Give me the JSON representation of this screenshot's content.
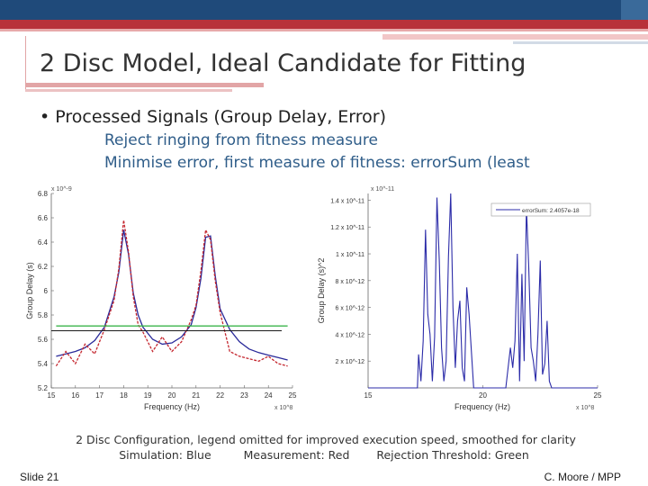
{
  "slide": {
    "title": "2 Disc Model, Ideal Candidate for Fitting",
    "bullet": "• Processed Signals (Group Delay, Error)",
    "subpoints": [
      "Reject ringing from fitness measure",
      "Minimise error, first measure of fitness: errorSum (least"
    ],
    "caption_line1": "2 Disc Configuration, legend omitted for improved execution speed, smoothed for clarity",
    "caption_line2": {
      "simulation": "Simulation: Blue",
      "measurement": "Measurement: Red",
      "threshold": "Rejection Threshold: Green"
    },
    "slide_number": "Slide 21",
    "author": "C. Moore / MPP"
  },
  "colors": {
    "simulation": "#2a2a9a",
    "measurement": "#c4262e",
    "threshold": "#3cb44b",
    "error": "#2b2ba8"
  },
  "chart_data": [
    {
      "type": "line",
      "xlabel": "Frequency (Hz)",
      "ylabel": "Group Delay (s)",
      "x_exponent": "x 10^8",
      "y_exponent": "x 10^-9",
      "xlim": [
        15,
        25
      ],
      "ylim": [
        5.2,
        6.8
      ],
      "xticks": [
        "15",
        "16",
        "17",
        "18",
        "19",
        "20",
        "21",
        "22",
        "23",
        "24",
        "25"
      ],
      "yticks": [
        "5.2",
        "5.4",
        "5.6",
        "5.8",
        "6",
        "6.2",
        "6.4",
        "6.6",
        "6.8"
      ],
      "x": [
        15.2,
        15.6,
        16,
        16.4,
        16.8,
        17.2,
        17.6,
        17.8,
        18,
        18.2,
        18.4,
        18.6,
        18.8,
        19.2,
        19.6,
        20,
        20.4,
        20.8,
        21,
        21.2,
        21.4,
        21.6,
        21.8,
        22,
        22.4,
        22.8,
        23.2,
        23.6,
        24,
        24.4,
        24.8
      ],
      "series": [
        {
          "name": "Simulation",
          "values": [
            5.46,
            5.48,
            5.5,
            5.53,
            5.59,
            5.7,
            5.95,
            6.15,
            6.5,
            6.3,
            5.98,
            5.8,
            5.7,
            5.6,
            5.56,
            5.57,
            5.62,
            5.72,
            5.86,
            6.1,
            6.44,
            6.45,
            6.12,
            5.85,
            5.68,
            5.58,
            5.52,
            5.49,
            5.47,
            5.45,
            5.43
          ]
        },
        {
          "name": "Measurement",
          "values": [
            5.38,
            5.5,
            5.4,
            5.56,
            5.48,
            5.68,
            5.92,
            6.18,
            6.58,
            6.32,
            5.95,
            5.72,
            5.66,
            5.5,
            5.62,
            5.5,
            5.58,
            5.76,
            5.88,
            6.16,
            6.5,
            6.42,
            6.08,
            5.82,
            5.5,
            5.46,
            5.44,
            5.42,
            5.46,
            5.4,
            5.38
          ]
        },
        {
          "name": "Threshold",
          "values": [
            5.71,
            5.71,
            5.71,
            5.71,
            5.71,
            5.71,
            5.71,
            5.71,
            5.71,
            5.71,
            5.71,
            5.71,
            5.71,
            5.71,
            5.71,
            5.71,
            5.71,
            5.71,
            5.71,
            5.71,
            5.71,
            5.71,
            5.71,
            5.71,
            5.71,
            5.71,
            5.71,
            5.71,
            5.71,
            5.71,
            5.71
          ]
        }
      ],
      "threshold_lower": 5.67
    },
    {
      "type": "line",
      "xlabel": "Frequency (Hz)",
      "ylabel": "Group Delay (s)^2",
      "x_exponent": "x 10^8",
      "y_exponent": "x 10^-11",
      "xlim": [
        15,
        25
      ],
      "ylim": [
        0,
        1.45
      ],
      "xticks": [
        "15",
        "20",
        "25"
      ],
      "yticks": [
        "2 x 10^-12",
        "4 x 10^-12",
        "6 x 10^-12",
        "8 x 10^-12",
        "1 x 10^-11",
        "1.2 x 10^-11",
        "1.4 x 10^-11"
      ],
      "legend": "errorSum: 2.4057e-18",
      "legend_position": "top-right",
      "x": [
        15,
        17,
        17.15,
        17.2,
        17.3,
        17.4,
        17.5,
        17.6,
        17.7,
        17.8,
        17.9,
        18,
        18.1,
        18.2,
        18.3,
        18.4,
        18.5,
        18.6,
        18.7,
        18.8,
        18.9,
        19,
        19.1,
        19.2,
        19.3,
        19.4,
        19.6,
        20,
        21,
        21.2,
        21.3,
        21.4,
        21.5,
        21.6,
        21.7,
        21.8,
        21.9,
        22,
        22.1,
        22.2,
        22.3,
        22.4,
        22.5,
        22.6,
        22.7,
        22.8,
        22.9,
        23,
        25
      ],
      "values": [
        0,
        0,
        0,
        0.25,
        0.05,
        0.35,
        1.18,
        0.55,
        0.4,
        0.05,
        0.38,
        1.42,
        0.95,
        0.3,
        0.05,
        0.2,
        0.98,
        1.45,
        0.6,
        0.15,
        0.5,
        0.65,
        0.15,
        0.05,
        0.75,
        0.55,
        0,
        0,
        0,
        0.3,
        0.15,
        0.35,
        1.0,
        0.05,
        0.85,
        0.2,
        1.35,
        0.9,
        0.3,
        0.2,
        0.05,
        0.4,
        0.95,
        0.1,
        0.18,
        0.5,
        0.05,
        0,
        0
      ]
    }
  ]
}
